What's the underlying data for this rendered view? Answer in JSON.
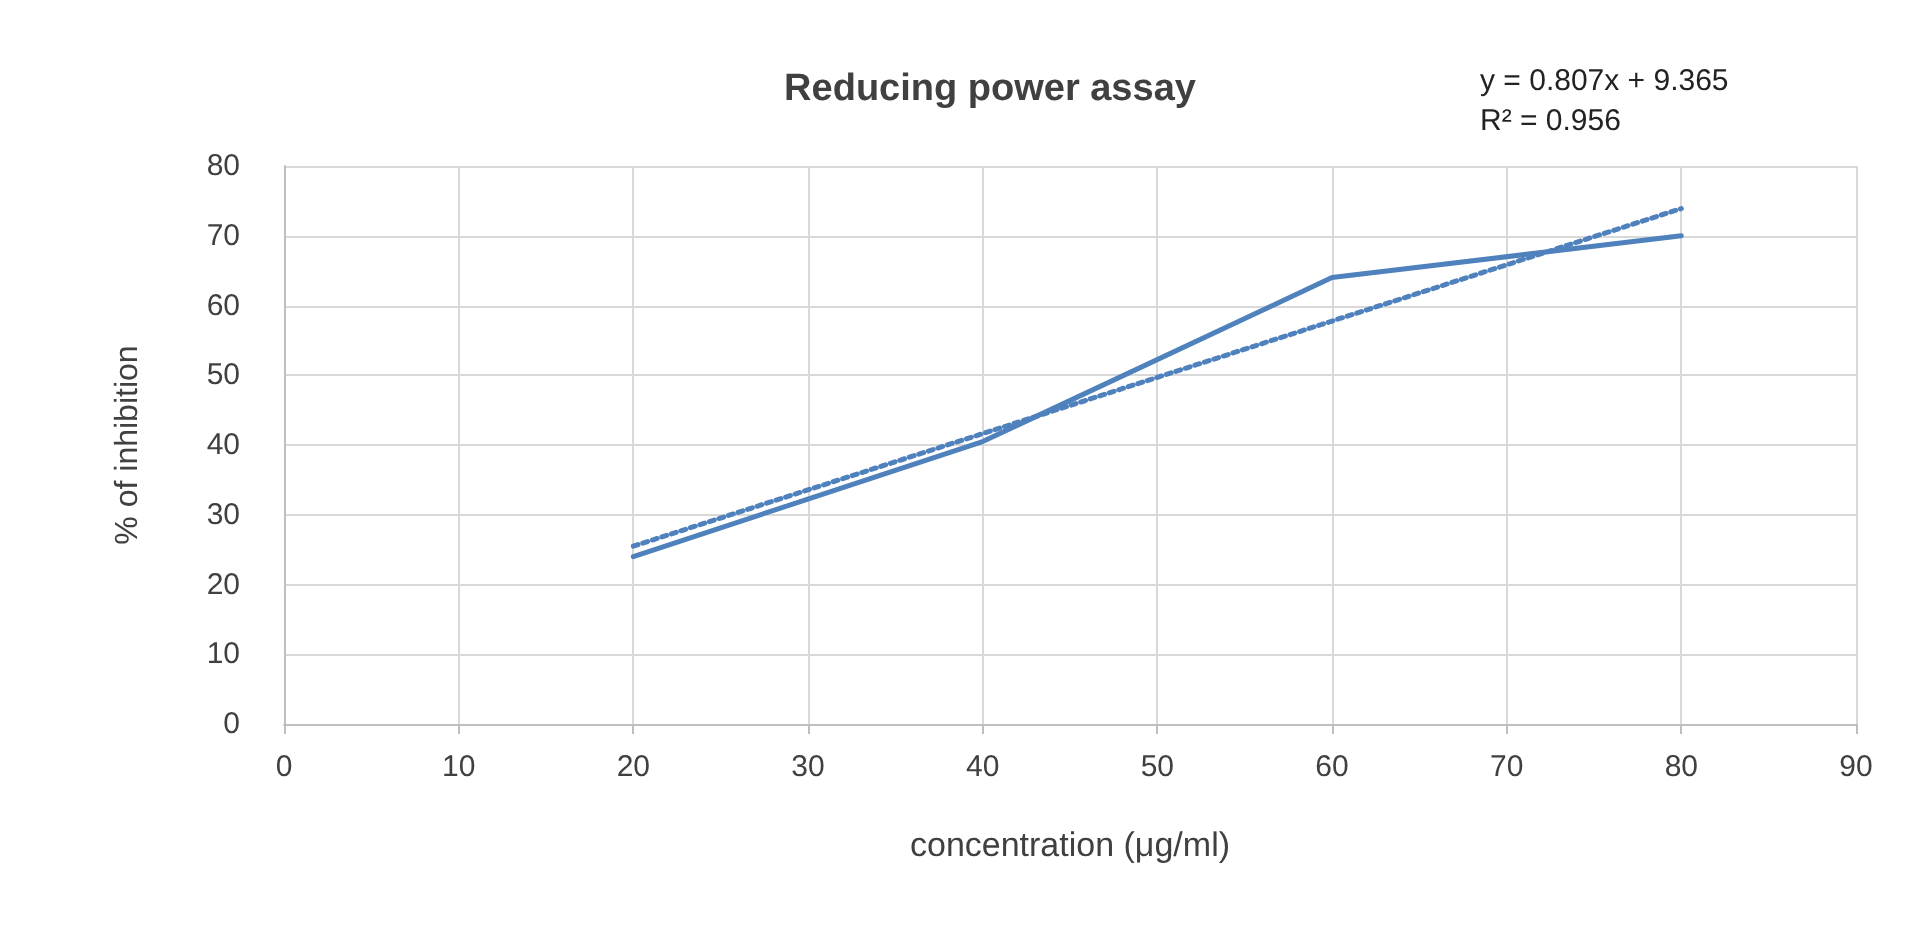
{
  "chart_data": {
    "type": "line",
    "title": "Reducing power assay",
    "xlabel": "concentration (μg/ml)",
    "ylabel": "% of inhibition",
    "annotations": [
      "y = 0.807x + 9.365",
      "R² = 0.956"
    ],
    "x": [
      20,
      40,
      60,
      80
    ],
    "series": [
      {
        "color": "#4f81bd",
        "values": [
          24,
          40.5,
          64,
          70
        ],
        "line_style": "solid"
      },
      {
        "type": "line",
        "color": "#4f81bd",
        "x": [
          20,
          80
        ],
        "values": [
          25.5,
          73.9
        ],
        "line_style": "dotted"
      }
    ],
    "xlim": [
      0,
      90
    ],
    "xticks": [
      0,
      10,
      20,
      30,
      40,
      50,
      60,
      70,
      80,
      90
    ],
    "ylim": [
      0,
      80
    ],
    "yticks": [
      0,
      10,
      20,
      30,
      40,
      50,
      60,
      70,
      80
    ],
    "grid": true,
    "marker": "none"
  }
}
